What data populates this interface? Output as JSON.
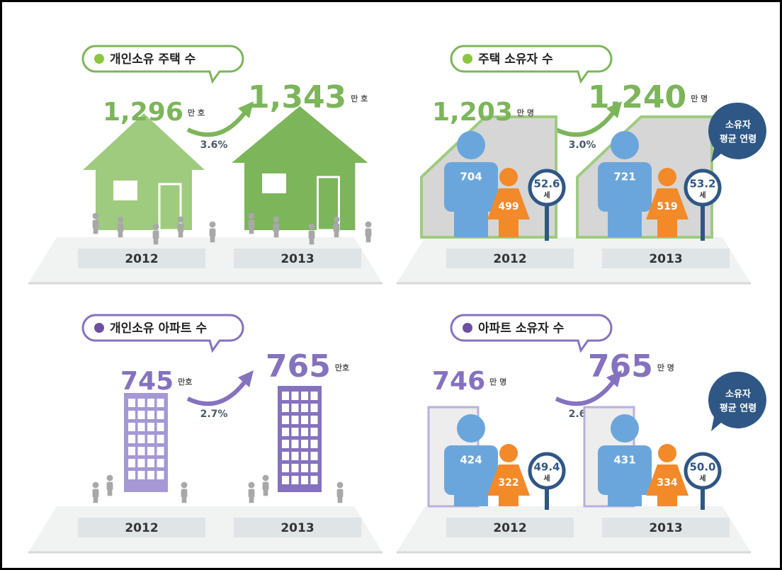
{
  "panels": [
    {
      "title": "개인소유 주택 수",
      "growth": "3.6%",
      "years": [
        {
          "year": "2012",
          "value": "1,296",
          "unit": "만 호"
        },
        {
          "year": "2013",
          "value": "1,343",
          "unit": "만 호"
        }
      ]
    },
    {
      "title": "주택 소유자 수",
      "growth": "3.0%",
      "note": [
        "소유자",
        "평균 연령"
      ],
      "years": [
        {
          "year": "2012",
          "value": "1,203",
          "unit": "만 명",
          "male": "704",
          "female": "499",
          "age": "52.6",
          "age_unit": "세"
        },
        {
          "year": "2013",
          "value": "1,240",
          "unit": "만 명",
          "male": "721",
          "female": "519",
          "age": "53.2",
          "age_unit": "세"
        }
      ]
    },
    {
      "title": "개인소유 아파트 수",
      "growth": "2.7%",
      "years": [
        {
          "year": "2012",
          "value": "745",
          "unit": "만호"
        },
        {
          "year": "2013",
          "value": "765",
          "unit": "만호"
        }
      ]
    },
    {
      "title": "아파트 소유자 수",
      "growth": "2.6%",
      "note": [
        "소유자",
        "평균 연령"
      ],
      "years": [
        {
          "year": "2012",
          "value": "746",
          "unit": "만 명",
          "male": "424",
          "female": "322",
          "age": "49.4",
          "age_unit": "세"
        },
        {
          "year": "2013",
          "value": "765",
          "unit": "만 명",
          "male": "431",
          "female": "334",
          "age": "50.0",
          "age_unit": "세"
        }
      ]
    }
  ]
}
